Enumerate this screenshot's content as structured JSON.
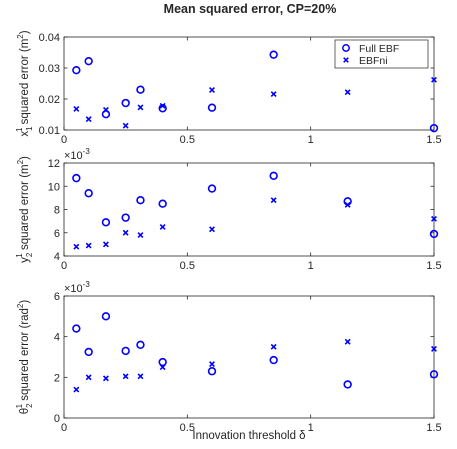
{
  "figure": {
    "title": "Mean squared error, CP=20%",
    "xlabel": "Innovation threshold  δ"
  },
  "colors": {
    "series": "#0000ff",
    "axis": "#262626"
  },
  "chart_data": [
    {
      "type": "scatter",
      "ylabel_main": "x",
      "ylabel_sub": "1",
      "ylabel_sup": "1",
      "ylabel_rest": " squared error (m",
      "ylabel_unit_sup": "2",
      "ylabel_end": ")",
      "exponent": "",
      "xlim": [
        0,
        1.5
      ],
      "ylim": [
        0.01,
        0.04
      ],
      "xticks": [
        0,
        0.5,
        1,
        1.5
      ],
      "xtick_labels": [
        "0",
        "0.5",
        "1",
        "1.5"
      ],
      "yticks": [
        0.01,
        0.02,
        0.03,
        0.04
      ],
      "ytick_labels": [
        "0.01",
        "0.02",
        "0.03",
        "0.04"
      ],
      "legend": {
        "location": "top-right",
        "entries": [
          "Full EBF",
          "EBFni"
        ]
      },
      "series": [
        {
          "name": "Full EBF",
          "marker": "circle",
          "x": [
            0.05,
            0.1,
            0.17,
            0.25,
            0.31,
            0.4,
            0.6,
            0.85,
            1.15,
            1.5
          ],
          "y": [
            0.0293,
            0.0322,
            0.0151,
            0.0187,
            0.023,
            0.017,
            0.0172,
            0.0343,
            0.0332,
            0.0106
          ]
        },
        {
          "name": "EBFni",
          "marker": "x",
          "x": [
            0.05,
            0.1,
            0.17,
            0.25,
            0.31,
            0.4,
            0.6,
            0.85,
            1.15,
            1.5
          ],
          "y": [
            0.0168,
            0.0135,
            0.0165,
            0.0114,
            0.0173,
            0.0178,
            0.0229,
            0.0216,
            0.0222,
            0.0262
          ]
        }
      ]
    },
    {
      "type": "scatter",
      "ylabel_main": "y",
      "ylabel_sub": "2",
      "ylabel_sup": "1",
      "ylabel_rest": " squared error (m",
      "ylabel_unit_sup": "2",
      "ylabel_end": ")",
      "exponent": "×10",
      "exponent_power": "-3",
      "xlim": [
        0,
        1.5
      ],
      "ylim": [
        4,
        12
      ],
      "xticks": [
        0,
        0.5,
        1,
        1.5
      ],
      "xtick_labels": [
        "0",
        "0.5",
        "1",
        "1.5"
      ],
      "yticks": [
        4,
        6,
        8,
        10,
        12
      ],
      "ytick_labels": [
        "4",
        "6",
        "8",
        "10",
        "12"
      ],
      "series": [
        {
          "name": "Full EBF",
          "marker": "circle",
          "x": [
            0.05,
            0.1,
            0.17,
            0.25,
            0.31,
            0.4,
            0.6,
            0.85,
            1.15,
            1.5
          ],
          "y": [
            10.7,
            9.4,
            6.9,
            7.3,
            8.8,
            8.5,
            9.8,
            10.9,
            8.7,
            5.9
          ]
        },
        {
          "name": "EBFni",
          "marker": "x",
          "x": [
            0.05,
            0.1,
            0.17,
            0.25,
            0.31,
            0.4,
            0.6,
            0.85,
            1.15,
            1.5
          ],
          "y": [
            4.8,
            4.9,
            5.0,
            6.0,
            5.8,
            6.5,
            6.3,
            8.8,
            8.4,
            7.2
          ]
        }
      ]
    },
    {
      "type": "scatter",
      "ylabel_main": "θ",
      "ylabel_sub": "2",
      "ylabel_sup": "1",
      "ylabel_rest": " squared error (rad",
      "ylabel_unit_sup": "2",
      "ylabel_end": ")",
      "exponent": "×10",
      "exponent_power": "-3",
      "xlim": [
        0,
        1.5
      ],
      "ylim": [
        0,
        6
      ],
      "xticks": [
        0,
        0.5,
        1,
        1.5
      ],
      "xtick_labels": [
        "0",
        "0.5",
        "1",
        "1.5"
      ],
      "yticks": [
        0,
        2,
        4,
        6
      ],
      "ytick_labels": [
        "0",
        "2",
        "4",
        "6"
      ],
      "series": [
        {
          "name": "Full EBF",
          "marker": "circle",
          "x": [
            0.05,
            0.1,
            0.17,
            0.25,
            0.31,
            0.4,
            0.6,
            0.85,
            1.15,
            1.5
          ],
          "y": [
            4.4,
            3.25,
            5.0,
            3.3,
            3.6,
            2.75,
            2.3,
            2.85,
            1.65,
            2.15
          ]
        },
        {
          "name": "EBFni",
          "marker": "x",
          "x": [
            0.05,
            0.1,
            0.17,
            0.25,
            0.31,
            0.4,
            0.6,
            0.85,
            1.15,
            1.5
          ],
          "y": [
            1.4,
            2.0,
            1.95,
            2.05,
            2.05,
            2.5,
            2.65,
            3.5,
            3.75,
            3.4
          ]
        }
      ]
    }
  ]
}
